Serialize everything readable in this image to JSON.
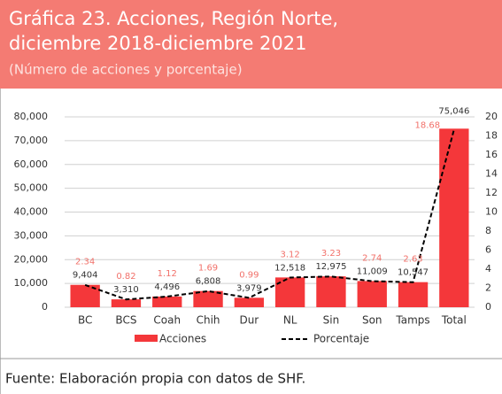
{
  "header": {
    "title_line1": "Gráfica 23. Acciones, Región Norte,",
    "title_line2": "diciembre 2018-diciembre 2021",
    "subtitle": "(Número de acciones y porcentaje)"
  },
  "chart_data": {
    "type": "bar-line",
    "categories": [
      "BC",
      "BCS",
      "Coah",
      "Chih",
      "Dur",
      "NL",
      "Sin",
      "Son",
      "Tamps",
      "Total"
    ],
    "series": [
      {
        "name": "Acciones",
        "color": "#f4373a",
        "type": "bar",
        "values": [
          9404,
          3310,
          4496,
          6808,
          3979,
          12518,
          12975,
          11009,
          10547,
          75046
        ],
        "value_labels": [
          "9,404",
          "3,310",
          "4,496",
          "6,808",
          "3,979",
          "12,518",
          "12,975",
          "11,009",
          "10,547",
          "75,046"
        ]
      },
      {
        "name": "Porcentaje",
        "color": "#000000",
        "type": "line",
        "axis": "y2",
        "label_color": "#f2716a",
        "values": [
          2.34,
          0.82,
          1.12,
          1.69,
          0.99,
          3.12,
          3.23,
          2.74,
          2.63,
          18.68
        ]
      }
    ],
    "ylim": [
      0,
      80000
    ],
    "yticks": [
      0,
      {
        "value": 10000,
        "label": "10,000"
      },
      {
        "value": 20000,
        "label": "20,000"
      },
      {
        "value": 30000,
        "label": "30,000"
      },
      {
        "value": 40000,
        "label": "40,000"
      },
      {
        "value": 50000,
        "label": "50,000"
      },
      {
        "value": 60000,
        "label": "60,000"
      },
      {
        "value": 70000,
        "label": "70,000"
      },
      {
        "value": 80000,
        "label": "80,000"
      }
    ],
    "y2lim": [
      0,
      20
    ],
    "y2ticks": [
      0,
      2,
      4,
      6,
      8,
      10,
      12,
      14,
      16,
      18,
      20
    ],
    "grid": true,
    "legend": "bottom"
  },
  "footer": {
    "source": "Fuente: Elaboración propia con datos de SHF."
  }
}
